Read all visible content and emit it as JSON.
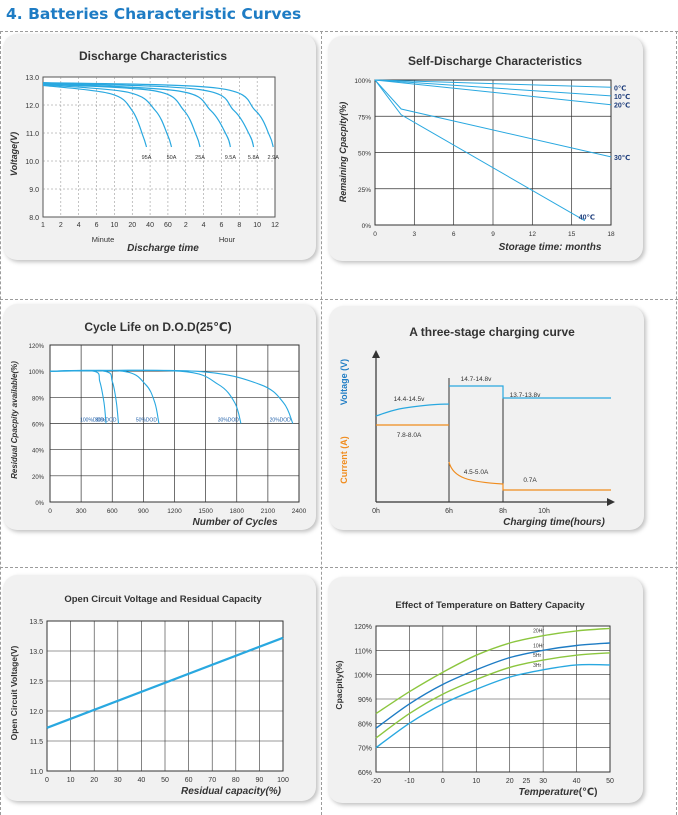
{
  "heading": "4.  Batteries Characteristic Curves",
  "chart_data": [
    {
      "id": "discharge",
      "type": "line",
      "title": "Discharge Characteristics",
      "ylabel": "Voltage(V)",
      "xlabel": "Discharge time",
      "x_unit_minute": "Minute",
      "x_unit_hour": "Hour",
      "x_ticks": [
        "1",
        "2",
        "4",
        "6",
        "10",
        "20",
        "40",
        "60",
        "2",
        "4",
        "6",
        "8",
        "10",
        "12"
      ],
      "y_ticks": [
        "8.0",
        "9.0",
        "10.0",
        "11.0",
        "12.0",
        "13.0"
      ],
      "ylim": [
        8.0,
        13.0
      ],
      "series": [
        {
          "name": "95A",
          "values": [
            [
              0,
              12.7
            ],
            [
              3.8,
              12.4
            ],
            [
              5.0,
              11.8
            ],
            [
              5.6,
              10.9
            ],
            [
              5.8,
              10.5
            ]
          ]
        },
        {
          "name": "50A",
          "values": [
            [
              0,
              12.72
            ],
            [
              4.8,
              12.45
            ],
            [
              6.3,
              11.8
            ],
            [
              7.0,
              10.9
            ],
            [
              7.2,
              10.5
            ]
          ]
        },
        {
          "name": "25A",
          "values": [
            [
              0,
              12.74
            ],
            [
              6.3,
              12.5
            ],
            [
              7.9,
              11.8
            ],
            [
              8.6,
              10.9
            ],
            [
              8.8,
              10.5
            ]
          ]
        },
        {
          "name": "9.5A",
          "values": [
            [
              0,
              12.76
            ],
            [
              7.6,
              12.5
            ],
            [
              9.4,
              11.8
            ],
            [
              10.3,
              10.9
            ],
            [
              10.5,
              10.5
            ]
          ]
        },
        {
          "name": "5.8A",
          "values": [
            [
              0,
              12.78
            ],
            [
              8.8,
              12.55
            ],
            [
              10.7,
              11.8
            ],
            [
              11.6,
              10.9
            ],
            [
              11.8,
              10.5
            ]
          ]
        },
        {
          "name": "2.9A",
          "values": [
            [
              0,
              12.8
            ],
            [
              9.8,
              12.6
            ],
            [
              11.9,
              11.8
            ],
            [
              12.7,
              10.9
            ],
            [
              12.9,
              10.5
            ]
          ]
        }
      ]
    },
    {
      "id": "selfdischarge",
      "type": "line",
      "title": "Self-Discharge Characteristics",
      "ylabel": "Remaining Cpacpity(%)",
      "xlabel": "Storage time: months",
      "x_ticks": [
        "0",
        "3",
        "6",
        "9",
        "12",
        "15",
        "18"
      ],
      "y_ticks": [
        "0%",
        "25%",
        "50%",
        "75%",
        "100%"
      ],
      "xlim": [
        0,
        18
      ],
      "ylim": [
        0,
        100
      ],
      "series": [
        {
          "name": "0℃",
          "values": [
            [
              0,
              100
            ],
            [
              18,
              95
            ]
          ]
        },
        {
          "name": "10℃",
          "values": [
            [
              0,
              100
            ],
            [
              18,
              89
            ]
          ]
        },
        {
          "name": "20℃",
          "values": [
            [
              0,
              100
            ],
            [
              18,
              83
            ]
          ]
        },
        {
          "name": "30℃",
          "values": [
            [
              0,
              100
            ],
            [
              1,
              90
            ],
            [
              2,
              80
            ],
            [
              18,
              47
            ]
          ]
        },
        {
          "name": "40℃",
          "values": [
            [
              0,
              100
            ],
            [
              1,
              88
            ],
            [
              2,
              76
            ],
            [
              16,
              3
            ]
          ]
        }
      ]
    },
    {
      "id": "cyclelife",
      "type": "line",
      "title": "Cycle Life on D.O.D(25℃)",
      "ylabel": "Residual Cpacpity available(%)",
      "xlabel": "Number of Cycles",
      "x_ticks": [
        "0",
        "300",
        "600",
        "900",
        "1200",
        "1500",
        "1800",
        "2100",
        "2400"
      ],
      "y_ticks": [
        "0%",
        "20%",
        "40%",
        "60%",
        "80%",
        "100%",
        "120%"
      ],
      "xlim": [
        0,
        2400
      ],
      "ylim": [
        0,
        120
      ],
      "series": [
        {
          "name": "100%DOD",
          "values": [
            [
              0,
              100
            ],
            [
              420,
              100
            ],
            [
              480,
              92
            ],
            [
              520,
              76
            ],
            [
              540,
              60
            ]
          ]
        },
        {
          "name": "80%DOD",
          "values": [
            [
              0,
              100
            ],
            [
              520,
              100
            ],
            [
              600,
              92
            ],
            [
              640,
              76
            ],
            [
              660,
              60
            ]
          ]
        },
        {
          "name": "50%DOD",
          "values": [
            [
              0,
              100
            ],
            [
              700,
              100
            ],
            [
              920,
              90
            ],
            [
              1010,
              76
            ],
            [
              1050,
              60
            ]
          ]
        },
        {
          "name": "30%DOD",
          "values": [
            [
              0,
              100
            ],
            [
              1250,
              100
            ],
            [
              1620,
              90
            ],
            [
              1780,
              76
            ],
            [
              1840,
              60
            ]
          ]
        },
        {
          "name": "20%DOD",
          "values": [
            [
              0,
              100
            ],
            [
              1400,
              100
            ],
            [
              2020,
              90
            ],
            [
              2250,
              76
            ],
            [
              2340,
              60
            ]
          ]
        }
      ]
    },
    {
      "id": "charging",
      "type": "line",
      "title": "A three-stage charging curve",
      "ylabel_voltage": "Voltage (V)",
      "ylabel_current": "Current (A)",
      "xlabel": "Charging time(hours)",
      "x_ticks": [
        "0h",
        "6h",
        "8h",
        "10h"
      ],
      "annotations": [
        "14.4-14.5v",
        "14.7-14.8v",
        "13.7-13.8v",
        "7.8-8.0A",
        "4.5-5.0A",
        "0.7A"
      ]
    },
    {
      "id": "ocv",
      "type": "line",
      "title": "Open Circuit Voltage and Residual Capacity",
      "ylabel": "Open Circuit Voltage(V)",
      "xlabel": "Residual capacity(%)",
      "x_ticks": [
        "0",
        "10",
        "20",
        "30",
        "40",
        "50",
        "60",
        "70",
        "80",
        "90",
        "100"
      ],
      "y_ticks": [
        "11.0",
        "11.5",
        "12.0",
        "12.5",
        "13.0",
        "13.5"
      ],
      "xlim": [
        0,
        100
      ],
      "ylim": [
        11.0,
        13.5
      ],
      "series": [
        {
          "name": "",
          "values": [
            [
              0,
              11.72
            ],
            [
              100,
              13.22
            ]
          ]
        }
      ]
    },
    {
      "id": "temperature",
      "type": "line",
      "title": "Effect of Temperature on Battery Capacity",
      "ylabel": "Cpacpity(%)",
      "xlabel": "Temperature",
      "xlabel_unit": "(℃)",
      "x_ticks": [
        "-20",
        "-10",
        "0",
        "10",
        "20",
        "25",
        "30",
        "40",
        "50"
      ],
      "y_ticks": [
        "60%",
        "70%",
        "80%",
        "90%",
        "100%",
        "110%",
        "120%"
      ],
      "xlim": [
        -20,
        50
      ],
      "ylim": [
        60,
        120
      ],
      "series": [
        {
          "name": "20Hr",
          "color": "#8cc63f",
          "values": [
            [
              -20,
              84
            ],
            [
              -10,
              93
            ],
            [
              0,
              101
            ],
            [
              10,
              108
            ],
            [
              20,
              113
            ],
            [
              30,
              116
            ],
            [
              40,
              118
            ],
            [
              50,
              119
            ]
          ]
        },
        {
          "name": "10Hr",
          "color": "#1e7cc4",
          "values": [
            [
              -20,
              78
            ],
            [
              -10,
              88
            ],
            [
              0,
              96
            ],
            [
              10,
              102
            ],
            [
              20,
              107
            ],
            [
              30,
              110
            ],
            [
              40,
              112
            ],
            [
              50,
              113
            ]
          ]
        },
        {
          "name": "5Hr",
          "color": "#8cc63f",
          "values": [
            [
              -20,
              74
            ],
            [
              -10,
              84
            ],
            [
              0,
              92
            ],
            [
              10,
              98
            ],
            [
              20,
              103
            ],
            [
              30,
              106
            ],
            [
              40,
              108
            ],
            [
              50,
              109
            ]
          ]
        },
        {
          "name": "3Hr",
          "color": "#29a8e0",
          "values": [
            [
              -20,
              70
            ],
            [
              -10,
              80
            ],
            [
              0,
              88
            ],
            [
              10,
              94
            ],
            [
              20,
              99
            ],
            [
              30,
              102
            ],
            [
              40,
              104
            ],
            [
              50,
              104
            ]
          ]
        }
      ]
    }
  ]
}
